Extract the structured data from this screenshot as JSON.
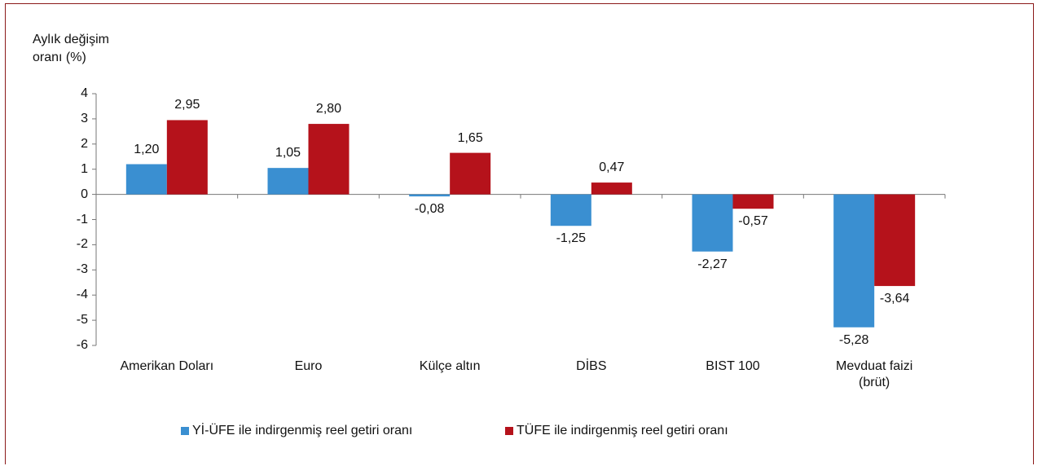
{
  "chart_data": {
    "type": "bar",
    "y_label": "Aylık değişim oranı (%)",
    "categories": [
      "Amerikan Doları",
      "Euro",
      "Külçe altın",
      "DİBS",
      "BIST 100",
      "Mevduat faizi (brüt)"
    ],
    "series": [
      {
        "name": "Yİ-ÜFE ile indirgenmiş reel getiri oranı",
        "color": "#3a8fd1",
        "values": [
          1.2,
          1.05,
          -0.08,
          -1.25,
          -2.27,
          -5.28
        ],
        "value_labels": [
          "1,20",
          "1,05",
          "-0,08",
          "-1,25",
          "-2,27",
          "-5,28"
        ]
      },
      {
        "name": "TÜFE ile indirgenmiş reel getiri oranı",
        "color": "#b5121b",
        "values": [
          2.95,
          2.8,
          1.65,
          0.47,
          -0.57,
          -3.64
        ],
        "value_labels": [
          "2,95",
          "2,80",
          "1,65",
          "0,47",
          "-0,57",
          "-3,64"
        ]
      }
    ],
    "ylim": [
      -6,
      4
    ],
    "yticks": [
      4,
      3,
      2,
      1,
      0,
      -1,
      -2,
      -3,
      -4,
      -5,
      -6
    ],
    "grid": false
  }
}
